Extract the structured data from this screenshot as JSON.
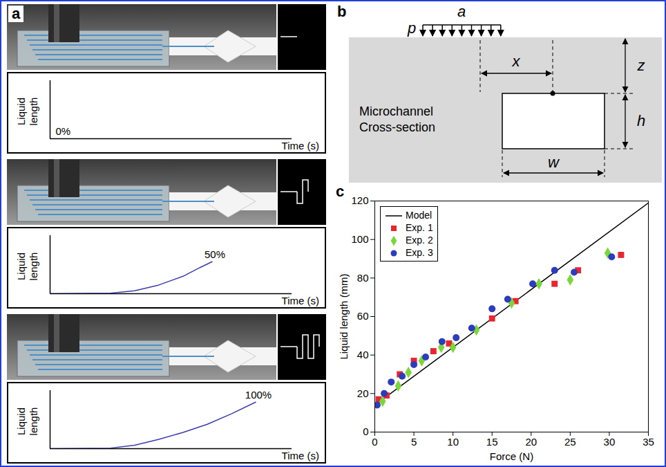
{
  "panel_a": {
    "letter": "a",
    "y_label": "Liquid length",
    "x_label": "Time (s)",
    "color": "#3b3bb0",
    "xlim": [
      0,
      100
    ],
    "ylim": [
      0,
      100
    ],
    "rows": [
      {
        "fill_value": 0,
        "fill_label": "0%",
        "trace": {
          "x": [],
          "y": []
        }
      },
      {
        "fill_value": 50,
        "fill_label": "50%",
        "trace": {
          "x": [
            0,
            25,
            35,
            45,
            55,
            62,
            67
          ],
          "y": [
            0,
            1,
            5,
            15,
            30,
            45,
            55
          ]
        }
      },
      {
        "fill_value": 100,
        "fill_label": "100%",
        "trace": {
          "x": [
            0,
            25,
            35,
            45,
            55,
            65,
            75,
            85
          ],
          "y": [
            0,
            1,
            6,
            16,
            28,
            42,
            60,
            80
          ]
        }
      }
    ]
  },
  "panel_b": {
    "letter": "b",
    "load_label": "p",
    "load_width_label": "a",
    "offset_label": "x",
    "depth_label": "z",
    "height_label": "h",
    "width_label": "w",
    "section_label": [
      "Microchannel",
      "Cross-section"
    ]
  },
  "chart_data": {
    "type": "scatter",
    "panel_label": "c",
    "x_label": "Force (N)",
    "y_label": "Liquid length (mm)",
    "xlim": [
      0,
      35
    ],
    "xticks": [
      0,
      5,
      10,
      15,
      20,
      25,
      30,
      35
    ],
    "ylim": [
      0,
      120
    ],
    "yticks": [
      0,
      20,
      40,
      60,
      80,
      100,
      120
    ],
    "legend": "top-left",
    "grid": false,
    "series": [
      {
        "name": "Model",
        "type": "line",
        "color": "#000000",
        "x": [
          0,
          35
        ],
        "values": [
          14,
          119
        ]
      },
      {
        "name": "Exp. 1",
        "type": "scatter",
        "marker": "square",
        "color": "#e8262f",
        "x": [
          0.5,
          1.5,
          3.2,
          5,
          7.5,
          9.5,
          15,
          18,
          23,
          26,
          31.5
        ],
        "values": [
          17,
          19,
          30,
          37,
          42,
          46,
          59,
          68,
          77,
          84,
          92
        ]
      },
      {
        "name": "Exp. 2",
        "type": "scatter",
        "marker": "diamond",
        "color": "#7ad63a",
        "x": [
          1,
          3,
          4.3,
          6,
          8.5,
          10,
          13,
          17.5,
          21,
          25,
          29.8
        ],
        "values": [
          16,
          24,
          31,
          37,
          44,
          44,
          53,
          67,
          77,
          79,
          93
        ]
      },
      {
        "name": "Exp. 3",
        "type": "scatter",
        "marker": "circle",
        "color": "#2d3cba",
        "x": [
          0.3,
          1.2,
          2.1,
          3.5,
          5,
          6.5,
          8.6,
          10.4,
          12.4,
          15,
          17,
          20.2,
          23,
          25.5,
          30.3
        ],
        "values": [
          14,
          20,
          26,
          29,
          35,
          39,
          47,
          49,
          54,
          64,
          69,
          77,
          84,
          83,
          91
        ]
      }
    ]
  }
}
